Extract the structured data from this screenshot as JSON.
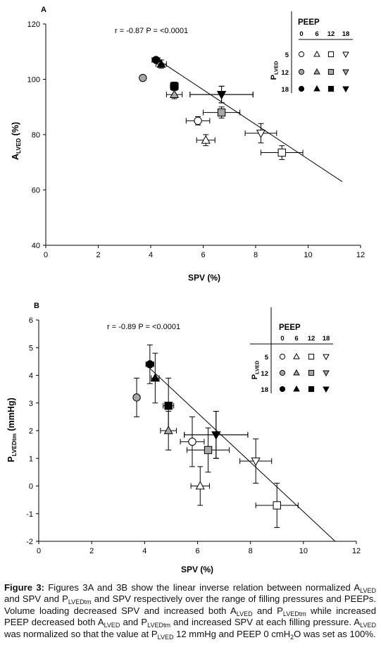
{
  "chart_data": [
    {
      "panel_label": "A",
      "type": "scatter",
      "annotation": "r = -0.87 P = <0.0001",
      "xlabel": "SPV (%)",
      "ylabel_main": "A",
      "ylabel_sub": "LVED",
      "ylabel_unit": " (%)",
      "xlim": [
        0,
        12
      ],
      "ylim": [
        40,
        120
      ],
      "xticks": [
        "0",
        "2",
        "4",
        "6",
        "8",
        "10",
        "12"
      ],
      "yticks": [
        "40",
        "60",
        "80",
        "100",
        "120"
      ],
      "regression": {
        "x": [
          4.2,
          11.3
        ],
        "y": [
          107.5,
          63
        ]
      },
      "points": [
        {
          "fill": "white",
          "shape": "circle",
          "x": 5.8,
          "y": 85,
          "xerr": 0.45,
          "yerr": 1.5
        },
        {
          "fill": "white",
          "shape": "triangle",
          "x": 6.1,
          "y": 78,
          "xerr": 0.35,
          "yerr": 2
        },
        {
          "fill": "white",
          "shape": "square",
          "x": 9.0,
          "y": 73.5,
          "xerr": 0.8,
          "yerr": 2.5
        },
        {
          "fill": "white",
          "shape": "invtri",
          "x": 8.2,
          "y": 80.5,
          "xerr": 0.6,
          "yerr": 3.5
        },
        {
          "fill": "gray",
          "shape": "circle",
          "x": 3.7,
          "y": 100.5,
          "xerr": 0,
          "yerr": 0
        },
        {
          "fill": "gray",
          "shape": "triangle",
          "x": 4.9,
          "y": 94.5,
          "xerr": 0.3,
          "yerr": 1.5
        },
        {
          "fill": "gray",
          "shape": "square",
          "x": 6.7,
          "y": 88,
          "xerr": 0.7,
          "yerr": 2
        },
        {
          "fill": "gray",
          "shape": "invtri",
          "x": 6.7,
          "y": 94.5,
          "xerr": 1.2,
          "yerr": 3
        },
        {
          "fill": "black",
          "shape": "circle",
          "x": 4.2,
          "y": 107,
          "xerr": 0.15,
          "yerr": 0.5
        },
        {
          "fill": "black",
          "shape": "triangle",
          "x": 4.4,
          "y": 105.5,
          "xerr": 0.2,
          "yerr": 1.5
        },
        {
          "fill": "black",
          "shape": "square",
          "x": 4.9,
          "y": 97.5,
          "xerr": 0.15,
          "yerr": 1.5
        },
        {
          "fill": "black",
          "shape": "invtri",
          "x": 6.7,
          "y": 94.5,
          "xerr": 1.2,
          "yerr": 3
        }
      ],
      "legend": {
        "col_header": "PEEP",
        "row_header_main": "P",
        "row_header_sub": "LVED",
        "cols": [
          "0",
          "6",
          "12",
          "18"
        ],
        "rows": [
          "5",
          "12",
          "18"
        ]
      }
    },
    {
      "panel_label": "B",
      "type": "scatter",
      "annotation": "r = -0.89 P = <0.0001",
      "xlabel": "SPV (%)",
      "ylabel_main": "P",
      "ylabel_sub": "LVEDtm",
      "ylabel_unit": " (mmHg)",
      "xlim": [
        0,
        12
      ],
      "ylim": [
        -2,
        6
      ],
      "xticks": [
        "0",
        "2",
        "4",
        "6",
        "8",
        "10",
        "12"
      ],
      "yticks": [
        "-2",
        "-1",
        "0",
        "1",
        "2",
        "3",
        "4",
        "5",
        "6"
      ],
      "regression": {
        "x": [
          4.2,
          11.2
        ],
        "y": [
          4.25,
          -2
        ]
      },
      "points": [
        {
          "fill": "white",
          "shape": "circle",
          "x": 5.8,
          "y": 1.6,
          "xerr": 0.45,
          "yerr": 0.9
        },
        {
          "fill": "white",
          "shape": "triangle",
          "x": 6.1,
          "y": 0,
          "xerr": 0.35,
          "yerr": 0.7
        },
        {
          "fill": "white",
          "shape": "square",
          "x": 9.0,
          "y": -0.7,
          "xerr": 0.8,
          "yerr": 0.8
        },
        {
          "fill": "white",
          "shape": "invtri",
          "x": 8.2,
          "y": 0.9,
          "xerr": 0.6,
          "yerr": 0.8
        },
        {
          "fill": "gray",
          "shape": "circle",
          "x": 3.7,
          "y": 3.2,
          "xerr": 0.1,
          "yerr": 0.7
        },
        {
          "fill": "gray",
          "shape": "triangle",
          "x": 4.9,
          "y": 2.0,
          "xerr": 0.3,
          "yerr": 0.7
        },
        {
          "fill": "gray",
          "shape": "square",
          "x": 6.4,
          "y": 1.3,
          "xerr": 0.8,
          "yerr": 0.8
        },
        {
          "fill": "gray",
          "shape": "invtri",
          "x": 6.7,
          "y": 1.85,
          "xerr": 1.2,
          "yerr": 0.85
        },
        {
          "fill": "black",
          "shape": "circle",
          "x": 4.2,
          "y": 4.4,
          "xerr": 0.15,
          "yerr": 0.7
        },
        {
          "fill": "black",
          "shape": "triangle",
          "x": 4.4,
          "y": 3.9,
          "xerr": 0.15,
          "yerr": 0.9
        },
        {
          "fill": "black",
          "shape": "square",
          "x": 4.9,
          "y": 2.9,
          "xerr": 0.2,
          "yerr": 1.0
        },
        {
          "fill": "black",
          "shape": "invtri",
          "x": 6.7,
          "y": 1.85,
          "xerr": 1.2,
          "yerr": 0.85
        }
      ],
      "legend": {
        "col_header": "PEEP",
        "row_header_main": "P",
        "row_header_sub": "LVED",
        "cols": [
          "0",
          "6",
          "12",
          "18"
        ],
        "rows": [
          "5",
          "12",
          "18"
        ]
      }
    }
  ],
  "colors": {
    "white": "#ffffff",
    "gray": "#a6a6a6",
    "black": "#000000",
    "stroke": "#000000"
  },
  "caption": {
    "label": "Figure 3:",
    "parts": [
      " Figures 3A and 3B show the linear inverse relation between normalized A",
      {
        "sub": "LVED"
      },
      " and SPV and P",
      {
        "sub": "LVEDtm"
      },
      " and SPV respectively over the range of filling pressures and PEEPs. Volume loading decreased SPV and increased both A",
      {
        "sub": "LVED"
      },
      " and P",
      {
        "sub": "LVEDtm"
      },
      " while increased PEEP decreased both A",
      {
        "sub": "LVED"
      },
      " and P",
      {
        "sub": "LVEDtm"
      },
      " and increased SPV at each filling pressure. A",
      {
        "sub": "LVED"
      },
      " was normalized so that the value at P",
      {
        "sub": "LVED"
      },
      " 12 mmHg and PEEP 0 cmH",
      {
        "sub": "2"
      },
      "O was set as 100%."
    ]
  }
}
